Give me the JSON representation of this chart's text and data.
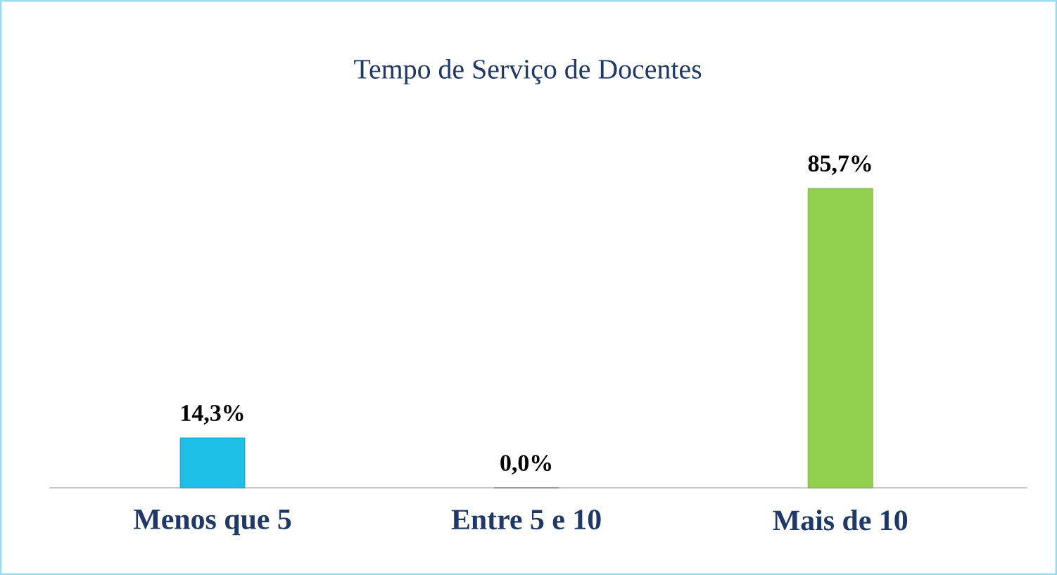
{
  "chart_data": {
    "type": "bar",
    "title": "Tempo de Serviço de Docentes",
    "categories": [
      "Menos que 5",
      "Entre 5 e 10",
      "Mais de 10"
    ],
    "values": [
      14.3,
      0.0,
      85.7
    ],
    "colors": [
      "#1ebfe6",
      "#a5a5a5",
      "#92d050"
    ],
    "value_labels": [
      "14,3%",
      "0,0%",
      "85,7%"
    ]
  }
}
